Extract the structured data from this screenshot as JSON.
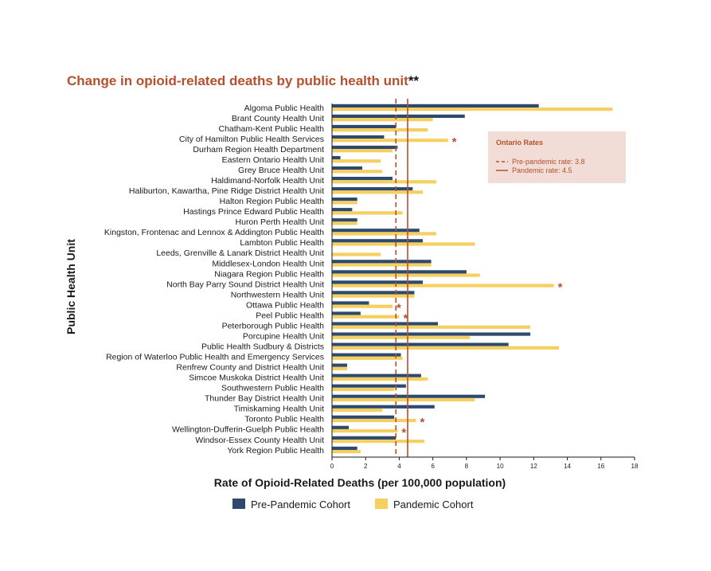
{
  "chart_data": {
    "type": "bar",
    "orientation": "horizontal",
    "title": "Change in opioid-related deaths by public health unit",
    "title_suffix": "**",
    "xlabel": "Rate of Opioid-Related Deaths (per 100,000 population)",
    "ylabel": "Public Health Unit",
    "xlim": [
      0,
      18
    ],
    "xticks": [
      "0",
      "2",
      "4",
      "6",
      "8",
      "10",
      "12",
      "14",
      "16",
      "18"
    ],
    "grid": false,
    "legend_position": "bottom",
    "categories": [
      "Algoma Public Health",
      "Brant County Health Unit",
      "Chatham-Kent Public Health",
      "City of Hamilton Public Health Services",
      "Durham Region Health Department",
      "Eastern Ontario Health Unit",
      "Grey Bruce Health Unit",
      "Haldimand-Norfolk Health Unit",
      "Haliburton, Kawartha, Pine Ridge District Health Unit",
      "Halton Region Public Health",
      "Hastings Prince Edward Public Health",
      "Huron Perth Health Unit",
      "Kingston, Frontenac and Lennox & Addington Public Health",
      "Lambton Public Health",
      "Leeds, Grenville & Lanark District Health Unit",
      "Middlesex-London Health Unit",
      "Niagara Region Public Health",
      "North Bay Parry Sound District Health Unit",
      "Northwestern Health Unit",
      "Ottawa Public Health",
      "Peel Public Health",
      "Peterborough Public Health",
      "Porcupine Health Unit",
      "Public Health Sudbury & Districts",
      "Region of Waterloo Public Health and Emergency Services",
      "Renfrew County and District Health Unit",
      "Simcoe Muskoka District Health Unit",
      "Southwestern Public Health",
      "Thunder Bay District Health Unit",
      "Timiskaming Health Unit",
      "Toronto Public Health",
      "Wellington-Dufferin-Guelph Public Health",
      "Windsor-Essex County Health Unit",
      "York Region Public Health"
    ],
    "series": [
      {
        "name": "Pre-Pandemic Cohort",
        "color": "#2d4a6e",
        "values": [
          12.3,
          7.9,
          3.8,
          3.1,
          3.9,
          0.5,
          1.8,
          3.6,
          4.8,
          1.5,
          1.2,
          1.5,
          5.2,
          5.4,
          0.0,
          5.9,
          8.0,
          5.4,
          4.9,
          2.2,
          1.7,
          6.3,
          11.8,
          10.5,
          4.1,
          0.9,
          5.3,
          4.4,
          9.1,
          6.1,
          3.7,
          1.0,
          3.8,
          1.5
        ]
      },
      {
        "name": "Pandemic Cohort",
        "color": "#f5d061",
        "values": [
          16.7,
          6.0,
          5.7,
          6.9,
          3.6,
          2.9,
          3.0,
          6.2,
          5.4,
          1.5,
          4.2,
          1.5,
          6.2,
          8.5,
          2.9,
          5.9,
          8.8,
          13.2,
          4.9,
          3.6,
          4.0,
          11.8,
          8.2,
          13.5,
          4.2,
          0.9,
          5.7,
          3.7,
          8.5,
          3.0,
          5.0,
          3.9,
          5.5,
          1.7
        ]
      }
    ],
    "significant_markers": [
      3,
      17,
      19,
      20,
      30,
      31
    ],
    "marker_symbol": "*",
    "reference_lines": [
      {
        "label": "Pre-pandemic rate: 3.8",
        "value": 3.8,
        "style": "dashed",
        "color": "#b5502f"
      },
      {
        "label": "Pandemic rate: 4.5",
        "value": 4.5,
        "style": "solid",
        "color": "#b5502f"
      }
    ],
    "inset_title": "Ontario Rates",
    "inset_color": "#f2ddd6"
  }
}
